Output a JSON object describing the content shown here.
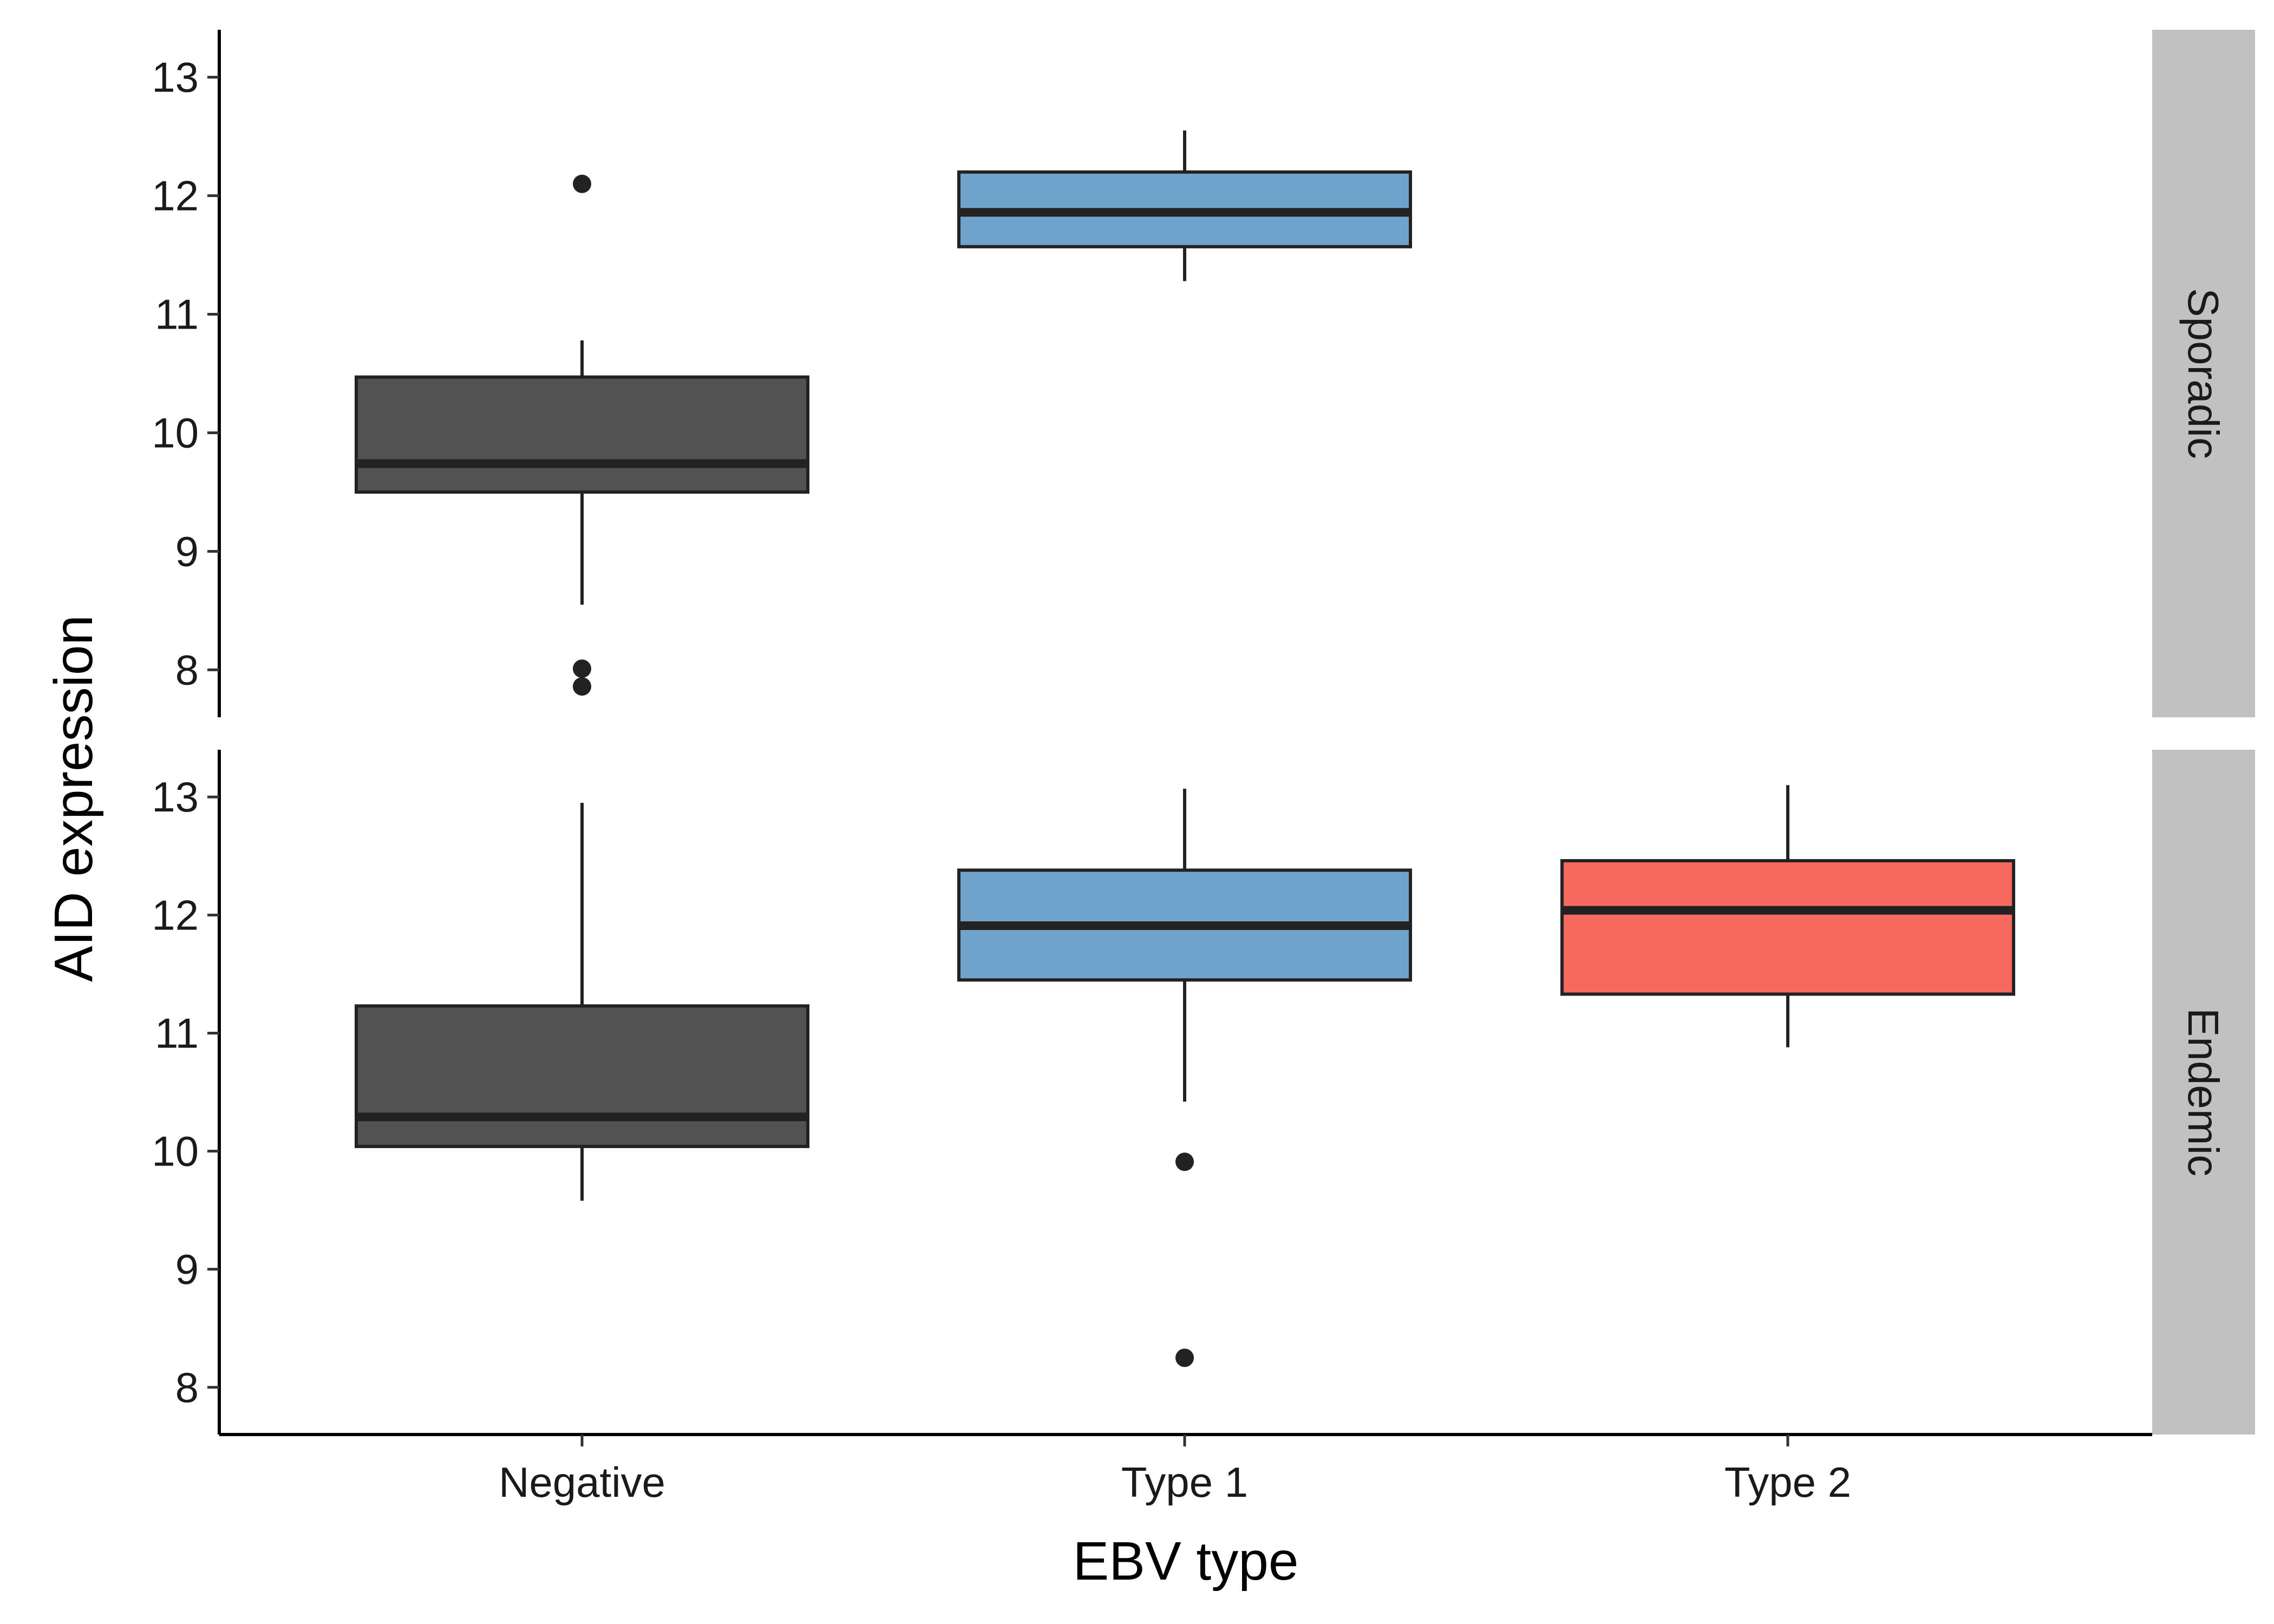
{
  "chart_data": {
    "type": "box",
    "xlabel": "EBV type",
    "ylabel": "AID expression",
    "categories": [
      "Negative",
      "Type 1",
      "Type 2"
    ],
    "category_colors": {
      "Negative": "#525252",
      "Type 1": "#6fa3cb",
      "Type 2": "#f7695f"
    },
    "facets": [
      {
        "label": "Sporadic",
        "ylim": [
          7.6,
          13.4
        ],
        "yticks": [
          8,
          9,
          10,
          11,
          12,
          13
        ],
        "boxes": [
          {
            "category": "Negative",
            "whisker_low": 8.55,
            "q1": 9.5,
            "median": 9.74,
            "q3": 10.47,
            "whisker_high": 10.78,
            "outliers": [
              12.1,
              8.01,
              7.86
            ]
          },
          {
            "category": "Type 1",
            "whisker_low": 11.28,
            "q1": 11.57,
            "median": 11.86,
            "q3": 12.2,
            "whisker_high": 12.55,
            "outliers": []
          }
        ]
      },
      {
        "label": "Endemic",
        "ylim": [
          7.6,
          13.4
        ],
        "yticks": [
          8,
          9,
          10,
          11,
          12,
          13
        ],
        "boxes": [
          {
            "category": "Negative",
            "whisker_low": 9.58,
            "q1": 10.04,
            "median": 10.29,
            "q3": 11.23,
            "whisker_high": 12.95,
            "outliers": []
          },
          {
            "category": "Type 1",
            "whisker_low": 10.42,
            "q1": 11.45,
            "median": 11.91,
            "q3": 12.38,
            "whisker_high": 13.07,
            "outliers": [
              9.91,
              8.25
            ]
          },
          {
            "category": "Type 2",
            "whisker_low": 10.88,
            "q1": 11.33,
            "median": 12.04,
            "q3": 12.46,
            "whisker_high": 13.1,
            "outliers": []
          }
        ]
      }
    ],
    "strip_background": "#c1c1c1",
    "grid": false,
    "legend": "none"
  }
}
